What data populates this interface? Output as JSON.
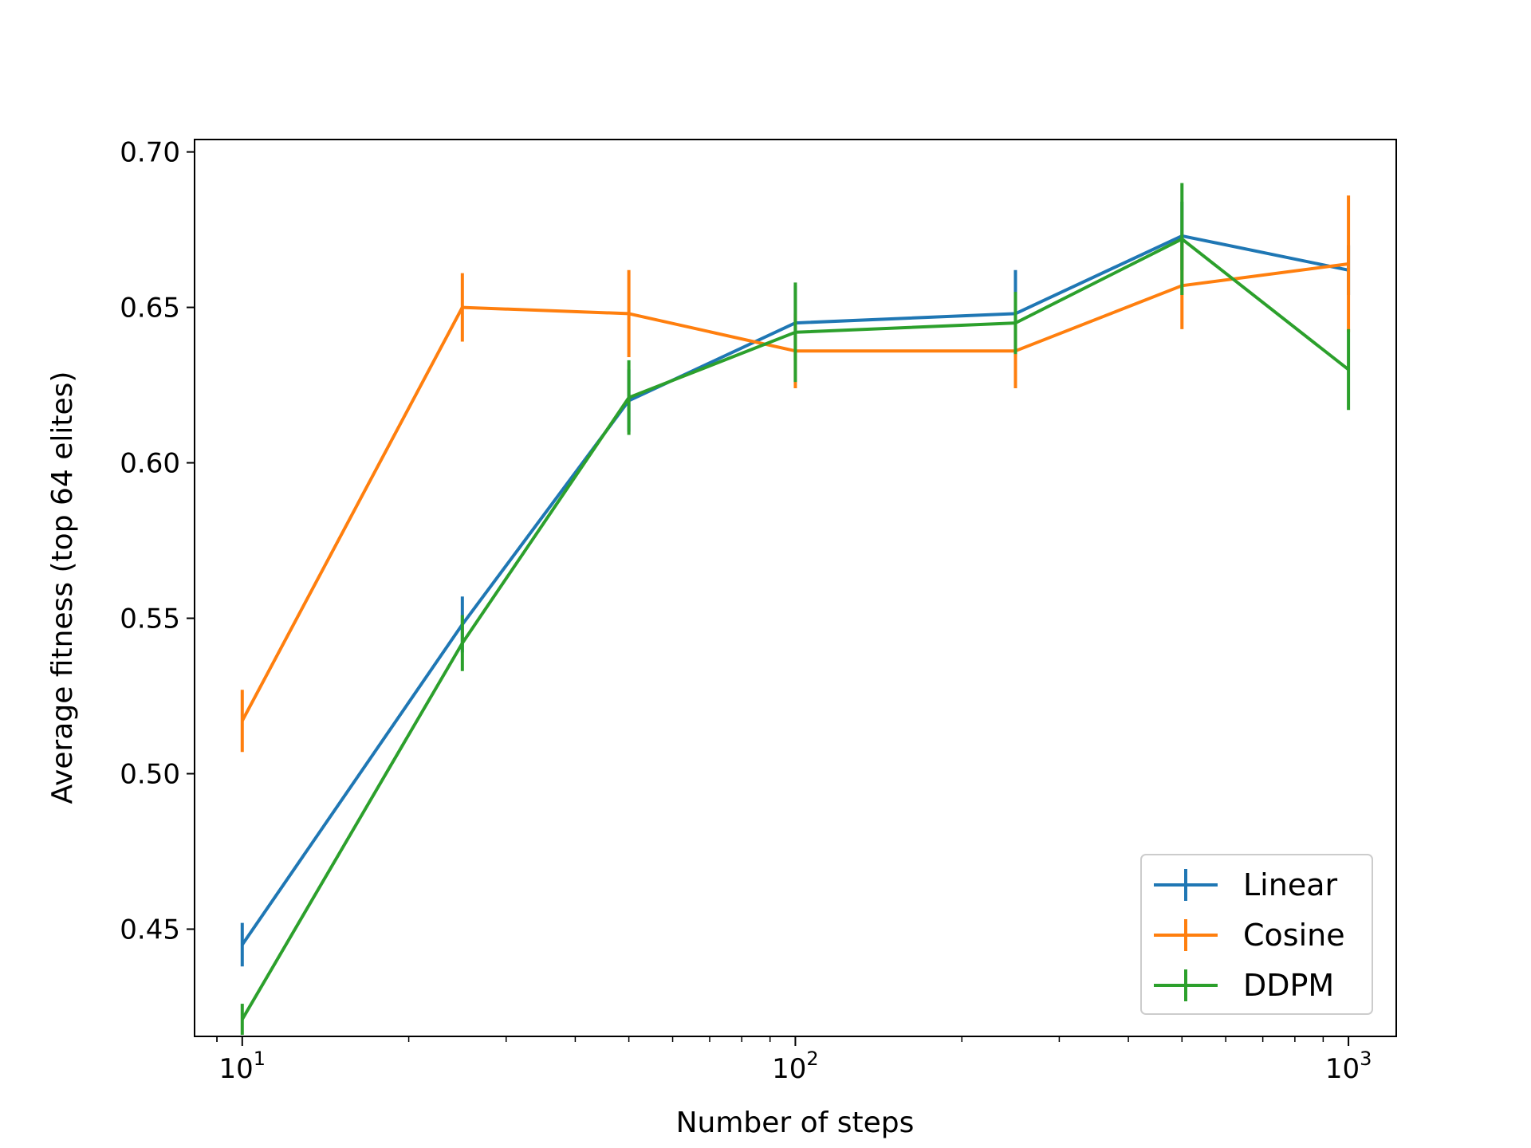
{
  "chart_data": {
    "type": "line",
    "title": "",
    "xlabel": "Number of steps",
    "ylabel": "Average fitness (top 64 elites)",
    "xscale": "log",
    "xlim": [
      8.2,
      1220
    ],
    "ylim": [
      0.4155,
      0.704
    ],
    "x": [
      10,
      25,
      50,
      100,
      250,
      500,
      1000
    ],
    "x_ticks": [
      {
        "value": 10,
        "base": "10",
        "exp": "1"
      },
      {
        "value": 100,
        "base": "10",
        "exp": "2"
      },
      {
        "value": 1000,
        "base": "10",
        "exp": "3"
      }
    ],
    "y_ticks": [
      {
        "value": 0.45,
        "label": "0.45"
      },
      {
        "value": 0.5,
        "label": "0.50"
      },
      {
        "value": 0.55,
        "label": "0.55"
      },
      {
        "value": 0.6,
        "label": "0.60"
      },
      {
        "value": 0.65,
        "label": "0.65"
      },
      {
        "value": 0.7,
        "label": "0.70"
      }
    ],
    "grid": false,
    "legend_position": "bottom-right",
    "series": [
      {
        "name": "Linear",
        "color": "#1f77b4",
        "values": [
          0.445,
          0.548,
          0.62,
          0.645,
          0.648,
          0.673,
          0.662
        ],
        "errors": [
          0.007,
          0.009,
          0.01,
          0.012,
          0.014,
          0.011,
          0.008
        ]
      },
      {
        "name": "Cosine",
        "color": "#ff7f0e",
        "values": [
          0.517,
          0.65,
          0.648,
          0.636,
          0.636,
          0.657,
          0.664
        ],
        "errors": [
          0.01,
          0.011,
          0.014,
          0.012,
          0.012,
          0.014,
          0.022
        ]
      },
      {
        "name": "DDPM",
        "color": "#2ca02c",
        "values": [
          0.421,
          0.542,
          0.621,
          0.642,
          0.645,
          0.672,
          0.63
        ],
        "errors": [
          0.005,
          0.009,
          0.012,
          0.016,
          0.01,
          0.018,
          0.013
        ]
      }
    ]
  }
}
